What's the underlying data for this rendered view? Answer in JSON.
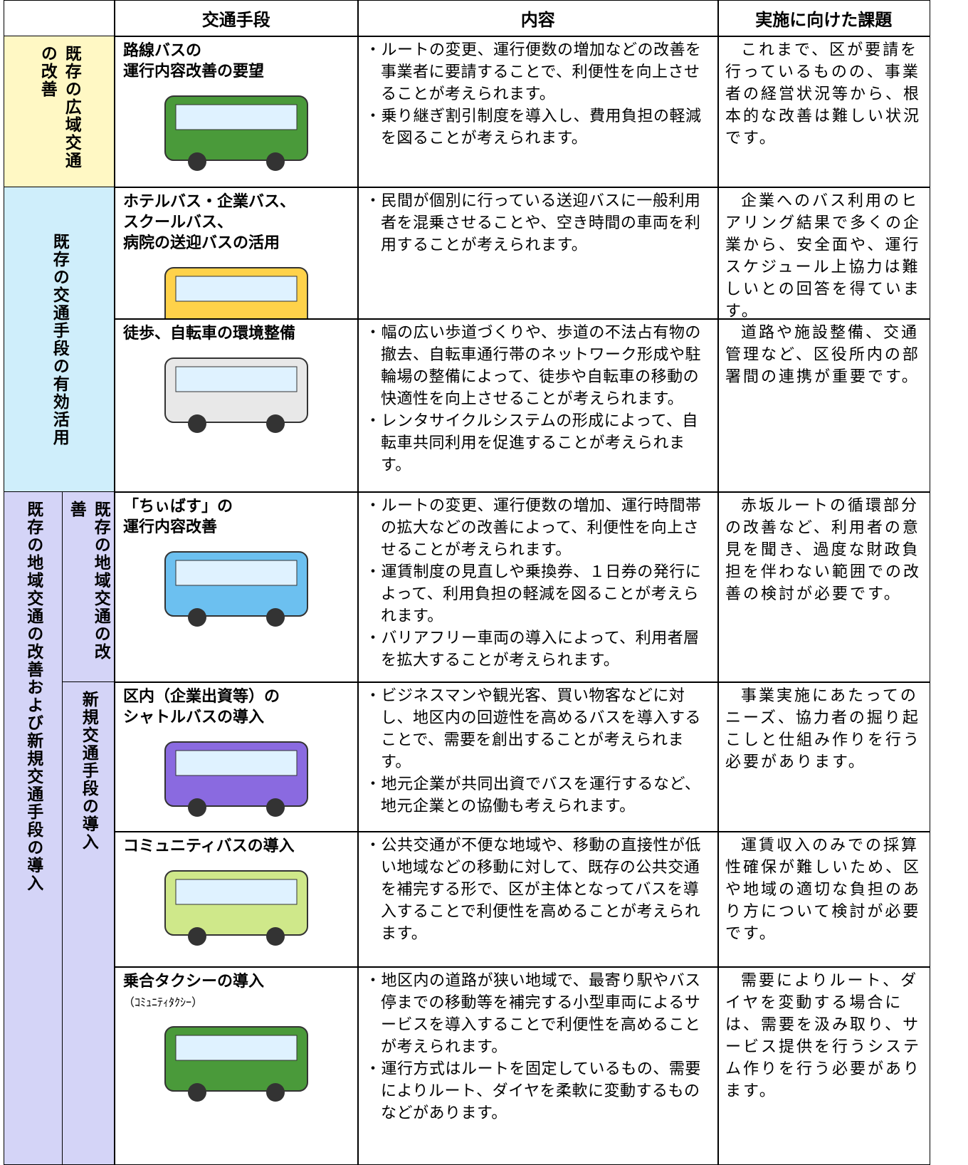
{
  "table": {
    "header": [
      "交通手段",
      "内容",
      "実施に向けた課題"
    ],
    "groups": [
      {
        "label": "既存の広域交通の改善",
        "rows": [
          {
            "means": [
              "路線バスの",
              "運行内容改善の要望"
            ],
            "content": [
              "・ルートの変更、運行便数の増加などの改善を事業者に要請することで、利便性を向上させることが考えられます。",
              "・乗り継ぎ割引制度を導入し、費用負担の軽減を図ることが考えられます。"
            ],
            "issue": "これまで、区が要請を行っているものの、事業者の経営状況等から、根本的な改善は難しい状況です。"
          }
        ]
      },
      {
        "label": "既存の交通手段の有効活用",
        "rows": [
          {
            "means": [
              "ホテルバス・企業バス、",
              "スクールバス、",
              "病院の送迎バスの活用"
            ],
            "content": [
              "・民間が個別に行っている送迎バスに一般利用者を混乗させることや、空き時間の車両を利用することが考えられます。"
            ],
            "issue": "企業へのバス利用のヒアリング結果で多くの企業から、安全面や、運行スケジュール上協力は難しいとの回答を得ています。"
          },
          {
            "means": [
              "徒歩、自転車の環境整備"
            ],
            "content": [
              "・幅の広い歩道づくりや、歩道の不法占有物の撤去、自転車通行帯のネットワーク形成や駐輪場の整備によって、徒歩や自転車の移動の快適性を向上させることが考えられます。",
              "・レンタサイクルシステムの形成によって、自転車共同利用を促進することが考えられます。"
            ],
            "issue": "道路や施設整備、交通管理など、区役所内の部署間の連携が重要です。"
          }
        ]
      },
      {
        "label": "既存の地域交通の改善および新規交通手段の導入",
        "subgroups": [
          {
            "label": "既存の地域交通の改善",
            "rows": [
              {
                "means": [
                  "「ちぃばす」の",
                  "運行内容改善"
                ],
                "content": [
                  "・ルートの変更、運行便数の増加、運行時間帯の拡大などの改善によって、利便性を向上させることが考えられます。",
                  "・運賃制度の見直しや乗換券、１日券の発行によって、利用負担の軽減を図ることが考えられます。",
                  "・バリアフリー車両の導入によって、利用者層を拡大することが考えられます。"
                ],
                "issue": "赤坂ルートの循環部分の改善など、利用者の意見を聞き、過度な財政負担を伴わない範囲での改善の検討が必要です。"
              }
            ]
          },
          {
            "label": "新規交通手段の導入",
            "rows": [
              {
                "means": [
                  "区内（企業出資等）の",
                  "シャトルバスの導入"
                ],
                "content": [
                  "・ビジネスマンや観光客、買い物客などに対し、地区内の回遊性を高めるバスを導入することで、需要を創出することが考えられます。",
                  "・地元企業が共同出資でバスを運行するなど、地元企業との協働も考えられます。"
                ],
                "issue": "事業実施にあたってのニーズ、協力者の掘り起こしと仕組み作りを行う必要があります。"
              },
              {
                "means": [
                  "コミュニティバスの導入"
                ],
                "content": [
                  "・公共交通が不便な地域や、移動の直接性が低い地域などの移動に対して、既存の公共交通を補完する形で、区が主体となってバスを導入することで利便性を高めることが考えられます。"
                ],
                "issue": "運賃収入のみでの採算性確保が難しいため、区や地域の適切な負担のあり方について検討が必要です。"
              },
              {
                "means": [
                  "乗合タクシーの導入"
                ],
                "note": "（ｺﾐｭﾆﾃｨﾀｸｼｰ）",
                "content": [
                  "・地区内の道路が狭い地域で、最寄り駅やバス停までの移動等を補完する小型車両によるサービスを導入することで利便性を高めることが考えられます。",
                  "・運行方式はルートを固定しているもの、需要によりルート、ダイヤを柔軟に変動するものなどがあります。"
                ],
                "issue": "需要によりルート、ダイヤを変動する場合には、需要を汲み取り、サービス提供を行うシステム作りを行う必要があります。"
              }
            ]
          }
        ]
      }
    ]
  }
}
